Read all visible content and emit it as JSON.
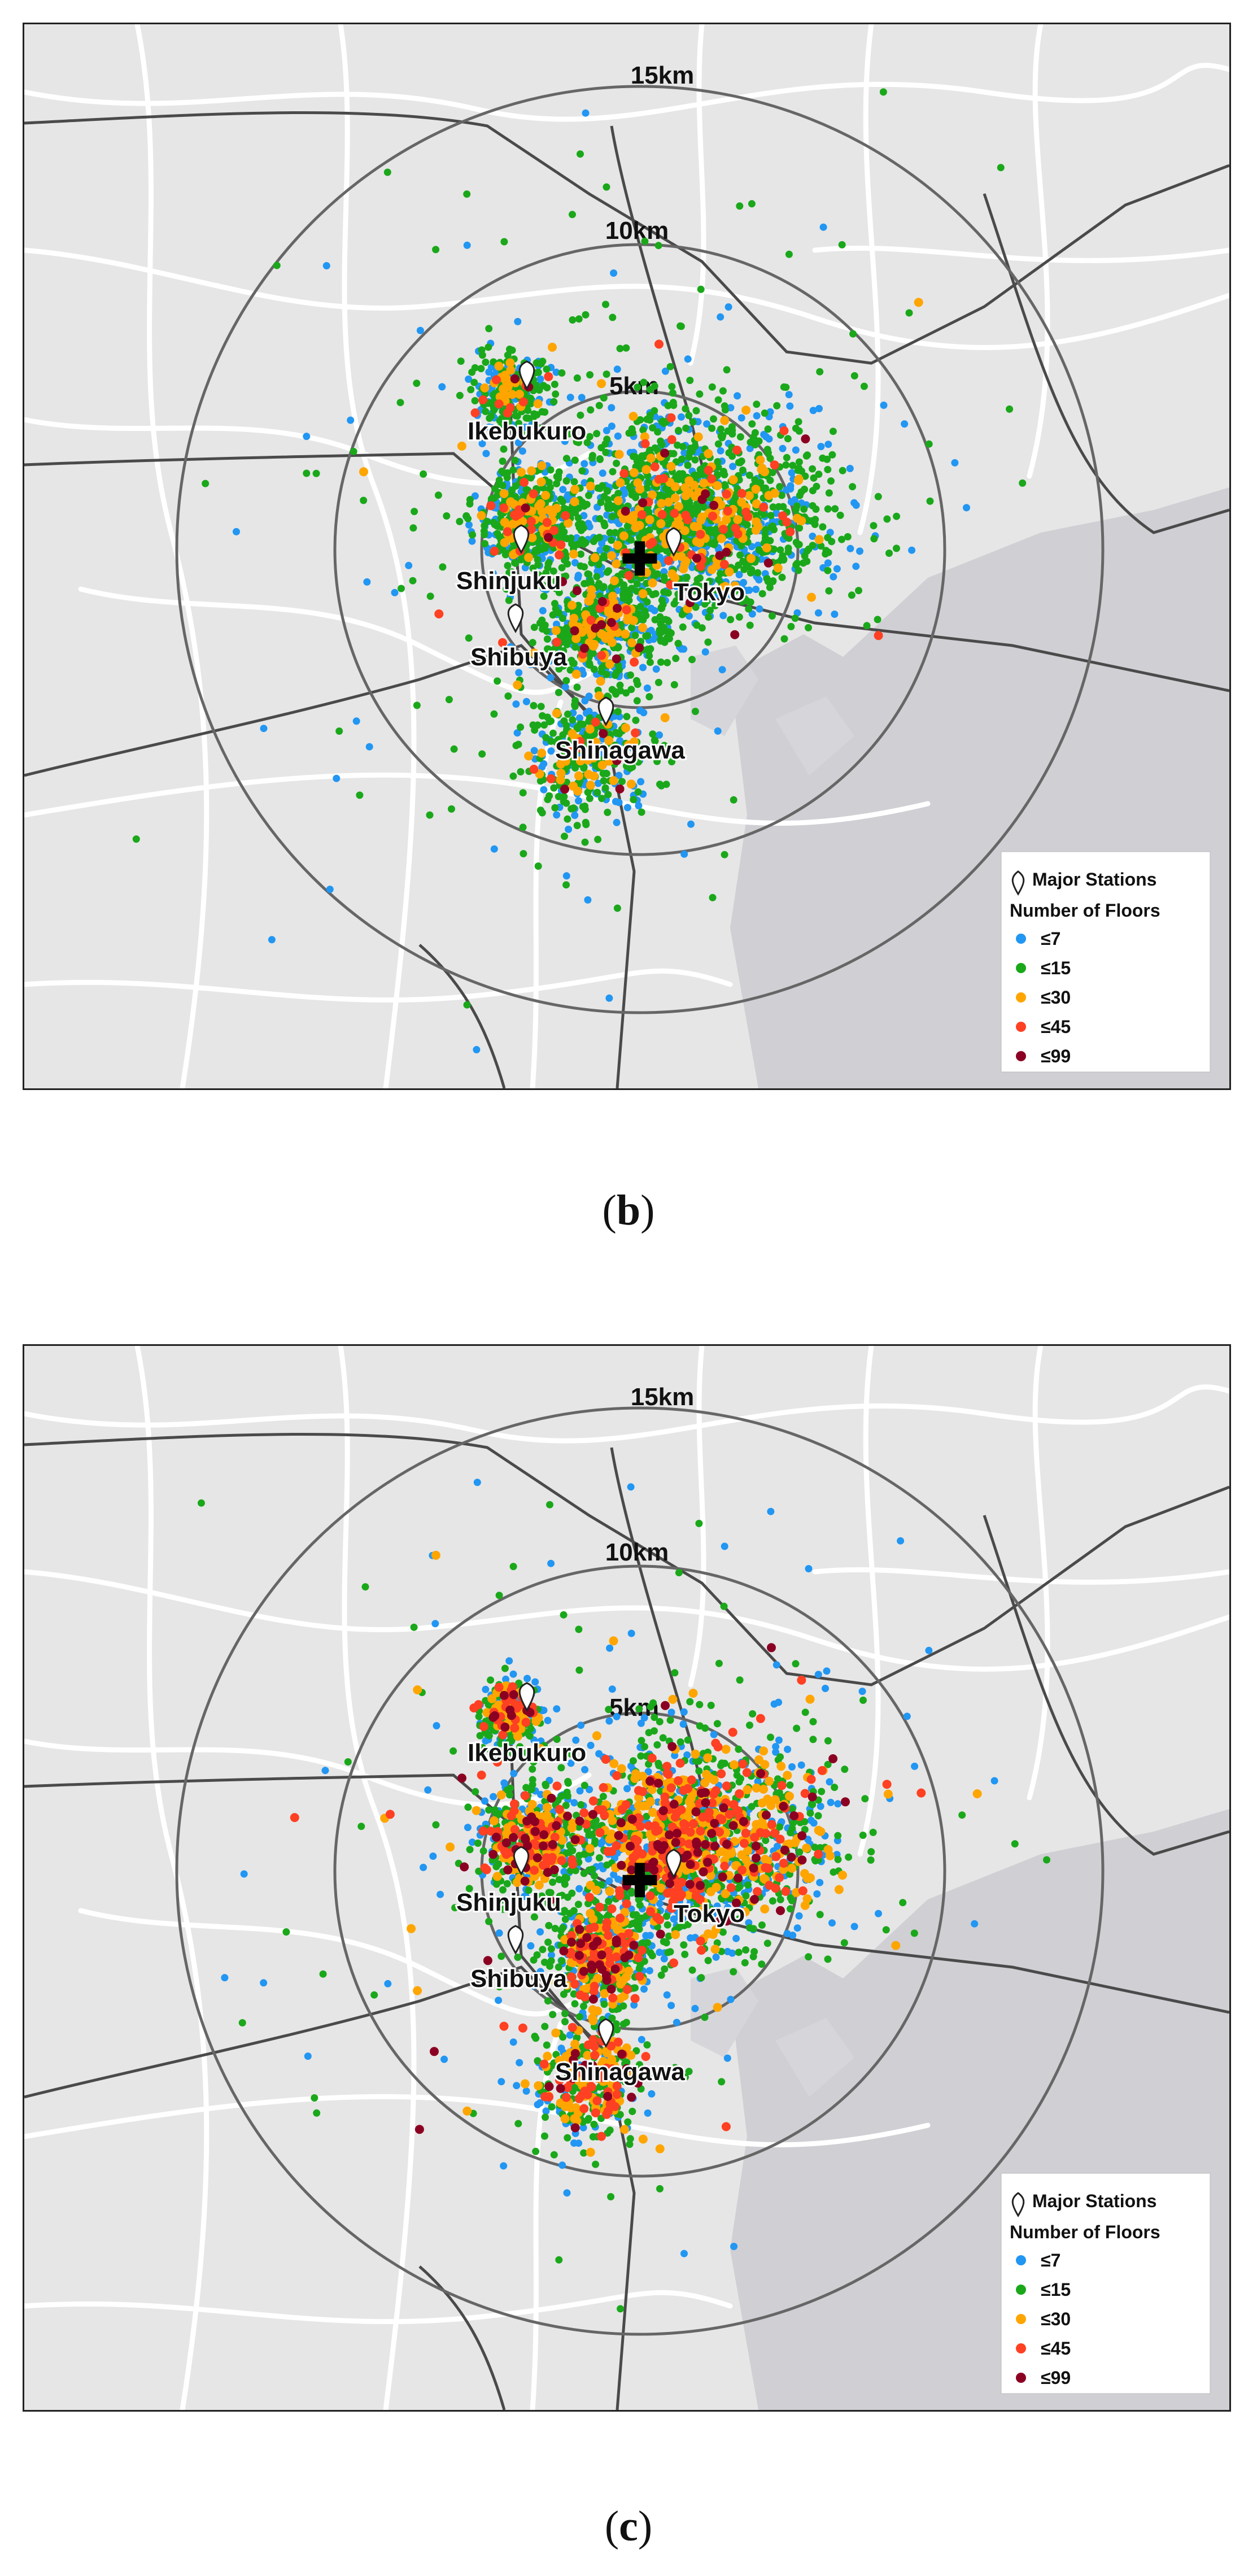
{
  "panels": [
    {
      "id": "b",
      "caption_letter": "b",
      "rings": [
        "15km",
        "10km",
        "5km"
      ],
      "center_symbol": "✚",
      "stations": [
        {
          "name": "Ikebukuro"
        },
        {
          "name": "Shinjuku"
        },
        {
          "name": "Tokyo"
        },
        {
          "name": "Shibuya"
        },
        {
          "name": "Shinagawa"
        }
      ],
      "legend": {
        "station_label": "Major Stations",
        "floors_title": "Number of Floors",
        "classes": [
          {
            "label": "≤7",
            "color": "#2196F3"
          },
          {
            "label": "≤15",
            "color": "#1aa81a"
          },
          {
            "label": "≤30",
            "color": "#FFA500"
          },
          {
            "label": "≤45",
            "color": "#FF4022"
          },
          {
            "label": "≤99",
            "color": "#8B0022"
          }
        ]
      },
      "point_mix": [
        0.3,
        0.56,
        0.1,
        0.03,
        0.01
      ]
    },
    {
      "id": "c",
      "caption_letter": "c",
      "rings": [
        "15km",
        "10km",
        "5km"
      ],
      "center_symbol": "✚",
      "stations": [
        {
          "name": "Ikebukuro"
        },
        {
          "name": "Shinjuku"
        },
        {
          "name": "Tokyo"
        },
        {
          "name": "Shibuya"
        },
        {
          "name": "Shinagawa"
        }
      ],
      "legend": {
        "station_label": "Major Stations",
        "floors_title": "Number of Floors",
        "classes": [
          {
            "label": "≤7",
            "color": "#2196F3"
          },
          {
            "label": "≤15",
            "color": "#1aa81a"
          },
          {
            "label": "≤30",
            "color": "#FFA500"
          },
          {
            "label": "≤45",
            "color": "#FF4022"
          },
          {
            "label": "≤99",
            "color": "#8B0022"
          }
        ]
      },
      "point_mix": [
        0.25,
        0.38,
        0.2,
        0.12,
        0.05
      ]
    }
  ],
  "map_colors": {
    "land": "#e6e6e6",
    "water": "#cfcfd4",
    "roads": "#ffffff",
    "rails": "#4a4a4a",
    "rings": "#666666"
  }
}
